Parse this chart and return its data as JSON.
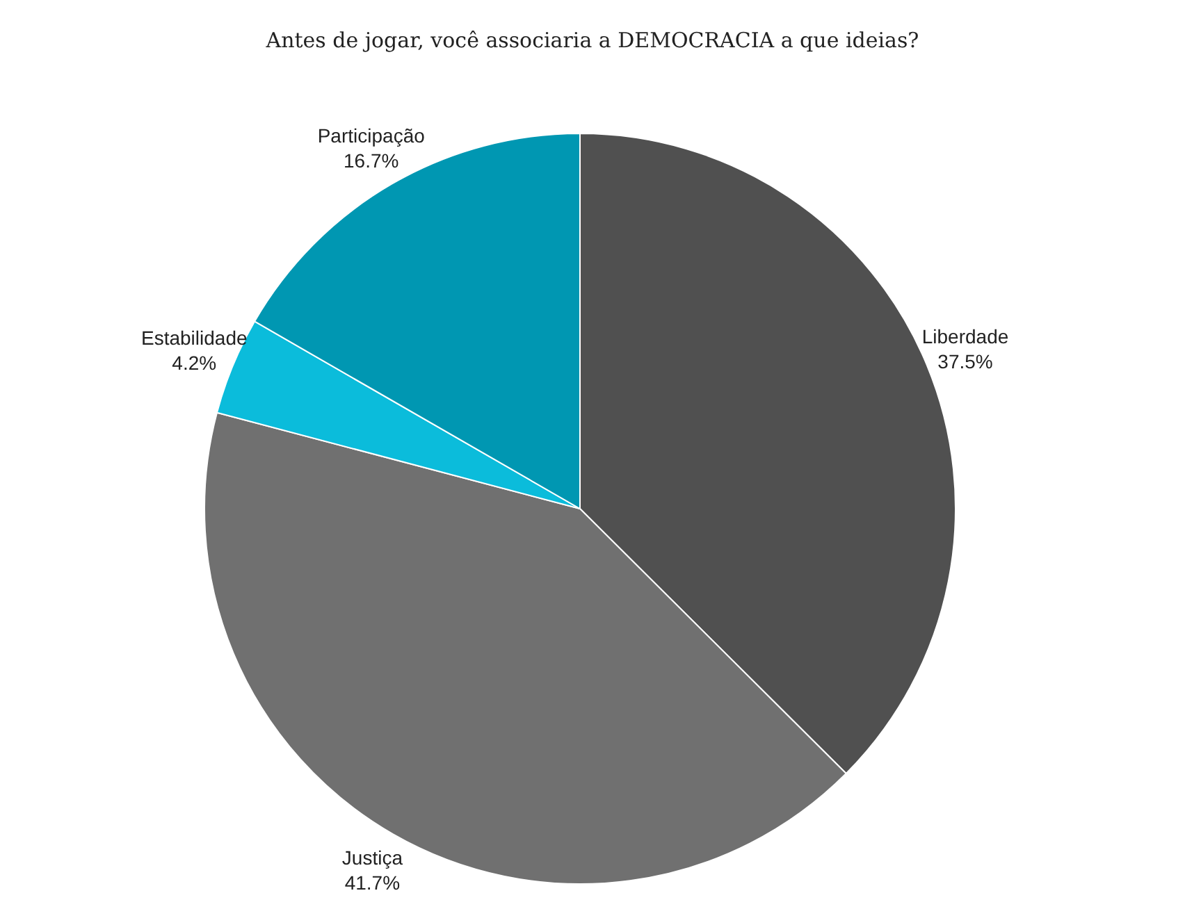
{
  "chart_data": {
    "type": "pie",
    "title": "Antes de jogar, você associaria a DEMOCRACIA a que ideias?",
    "categories": [
      "Liberdade",
      "Justiça",
      "Estabilidade",
      "Participação"
    ],
    "values": [
      37.5,
      41.7,
      4.2,
      16.7
    ],
    "value_labels": [
      "37.5%",
      "41.7%",
      "4.2%",
      "16.7%"
    ],
    "colors": [
      "#505050",
      "#707070",
      "#0bbcdb",
      "#0097b2"
    ]
  }
}
